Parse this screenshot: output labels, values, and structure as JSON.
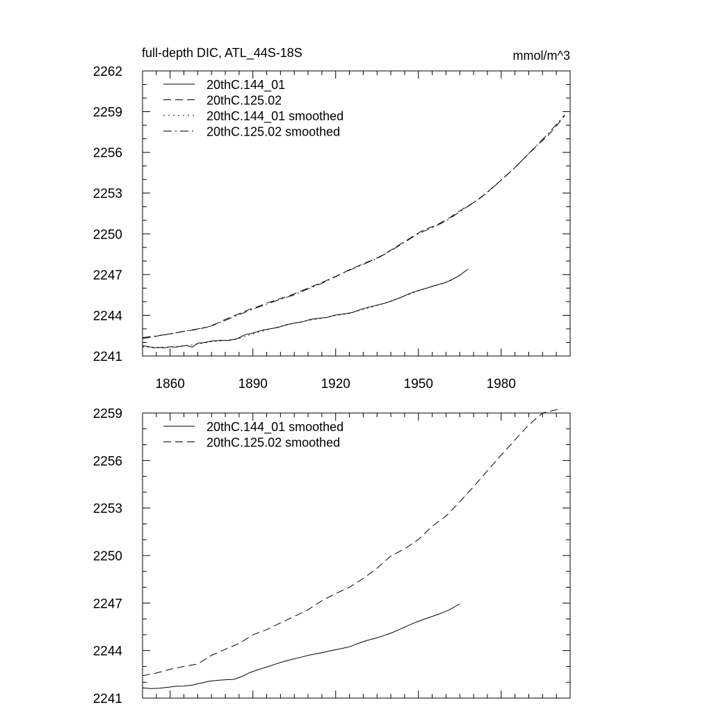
{
  "figure": {
    "title_left": "full-depth DIC, ATL_44S-18S",
    "title_right": "mmol/m^3"
  },
  "chart_data": [
    {
      "type": "line",
      "title": "full-depth DIC, ATL_44S-18S",
      "units": "mmol/m^3",
      "xlim": [
        1850,
        2005
      ],
      "ylim": [
        2241,
        2262
      ],
      "xticks": [
        1860,
        1890,
        1920,
        1950,
        1980
      ],
      "yticks": [
        2241,
        2244,
        2247,
        2250,
        2253,
        2256,
        2259,
        2262
      ],
      "x_tick_labels_visible": true,
      "grid": false,
      "legend_position": "top-left",
      "series": [
        {
          "name": "20thC.144_01",
          "dash": "solid",
          "x": [
            1850,
            1852,
            1854,
            1856,
            1858,
            1860,
            1862,
            1864,
            1866,
            1868,
            1870,
            1872,
            1875,
            1878,
            1881,
            1884,
            1887,
            1890,
            1893,
            1896,
            1899,
            1902,
            1905,
            1908,
            1911,
            1914,
            1917,
            1920,
            1923,
            1926,
            1929,
            1932,
            1935,
            1938,
            1941,
            1944,
            1947,
            1950,
            1953,
            1956,
            1959,
            1962,
            1965,
            1968
          ],
          "y": [
            2241.75,
            2241.7,
            2241.6,
            2241.63,
            2241.6,
            2241.68,
            2241.65,
            2241.72,
            2241.78,
            2241.65,
            2241.95,
            2241.98,
            2242.1,
            2242.15,
            2242.14,
            2242.25,
            2242.55,
            2242.7,
            2242.88,
            2243.0,
            2243.1,
            2243.3,
            2243.42,
            2243.52,
            2243.7,
            2243.78,
            2243.85,
            2244.02,
            2244.1,
            2244.2,
            2244.42,
            2244.6,
            2244.75,
            2244.9,
            2245.12,
            2245.35,
            2245.62,
            2245.82,
            2246.0,
            2246.2,
            2246.35,
            2246.6,
            2246.95,
            2247.4
          ]
        },
        {
          "name": "20thC.125.02",
          "dash": "dash",
          "x": [
            1850,
            1853,
            1856,
            1859,
            1862,
            1865,
            1868,
            1871,
            1874,
            1877,
            1880,
            1883,
            1886,
            1889,
            1892,
            1895,
            1898,
            1901,
            1904,
            1907,
            1910,
            1913,
            1916,
            1919,
            1922,
            1925,
            1928,
            1931,
            1934,
            1937,
            1940,
            1943,
            1946,
            1949,
            1952,
            1955,
            1958,
            1961,
            1964,
            1967,
            1970,
            1973,
            1976,
            1979,
            1982,
            1985,
            1988,
            1991,
            1994,
            1997,
            2000,
            2003
          ],
          "y": [
            2242.3,
            2242.38,
            2242.5,
            2242.6,
            2242.7,
            2242.82,
            2242.9,
            2243.02,
            2243.15,
            2243.4,
            2243.7,
            2243.95,
            2244.2,
            2244.45,
            2244.65,
            2244.9,
            2245.1,
            2245.3,
            2245.5,
            2245.75,
            2246.0,
            2246.25,
            2246.5,
            2246.78,
            2247.05,
            2247.35,
            2247.62,
            2247.88,
            2248.12,
            2248.42,
            2248.8,
            2249.18,
            2249.55,
            2249.95,
            2250.3,
            2250.52,
            2250.8,
            2251.15,
            2251.55,
            2251.95,
            2252.3,
            2252.72,
            2253.25,
            2253.78,
            2254.32,
            2254.88,
            2255.5,
            2256.1,
            2256.7,
            2257.25,
            2257.95,
            2258.7
          ]
        },
        {
          "name": "20thC.144_01 smoothed",
          "dash": "dot",
          "x": [
            1850,
            1855,
            1860,
            1865,
            1870,
            1875,
            1880,
            1885,
            1890,
            1895,
            1900,
            1905,
            1910,
            1915,
            1920,
            1925,
            1930,
            1935,
            1940,
            1945,
            1950,
            1955,
            1960,
            1965
          ],
          "y": [
            2241.68,
            2241.64,
            2241.66,
            2241.74,
            2241.88,
            2242.06,
            2242.14,
            2242.3,
            2242.64,
            2242.92,
            2243.18,
            2243.42,
            2243.62,
            2243.78,
            2243.98,
            2244.14,
            2244.44,
            2244.72,
            2245.04,
            2245.42,
            2245.8,
            2246.12,
            2246.44,
            2246.92
          ]
        },
        {
          "name": "20thC.125.02 smoothed",
          "dash": "dashdot",
          "x": [
            1850,
            1855,
            1860,
            1865,
            1870,
            1875,
            1880,
            1885,
            1890,
            1895,
            1900,
            1905,
            1910,
            1915,
            1920,
            1925,
            1930,
            1935,
            1940,
            1945,
            1950,
            1955,
            1960,
            1965,
            1970,
            1975,
            1980,
            1985,
            1990,
            1995,
            2000,
            2003
          ],
          "y": [
            2242.35,
            2242.48,
            2242.62,
            2242.82,
            2243.0,
            2243.22,
            2243.62,
            2244.05,
            2244.45,
            2244.82,
            2245.18,
            2245.5,
            2245.95,
            2246.35,
            2246.85,
            2247.32,
            2247.75,
            2248.18,
            2248.75,
            2249.38,
            2250.02,
            2250.45,
            2250.95,
            2251.62,
            2252.3,
            2253.05,
            2253.95,
            2254.88,
            2255.92,
            2256.95,
            2258.05,
            2258.75
          ]
        }
      ]
    },
    {
      "type": "line",
      "xlim": [
        1850,
        2005
      ],
      "ylim": [
        2241,
        2259
      ],
      "xticks": [
        1860,
        1890,
        1920,
        1950,
        1980
      ],
      "yticks": [
        2241,
        2244,
        2247,
        2250,
        2253,
        2256,
        2259
      ],
      "x_tick_labels_visible": false,
      "grid": false,
      "legend_position": "top-left",
      "series": [
        {
          "name": "20thC.144_01 smoothed",
          "dash": "solid",
          "x": [
            1850,
            1853,
            1856,
            1859,
            1862,
            1865,
            1868,
            1871,
            1874,
            1877,
            1880,
            1883,
            1886,
            1889,
            1892,
            1895,
            1898,
            1901,
            1904,
            1907,
            1910,
            1913,
            1916,
            1919,
            1922,
            1925,
            1928,
            1931,
            1934,
            1937,
            1940,
            1943,
            1946,
            1949,
            1952,
            1955,
            1958,
            1961,
            1965
          ],
          "y": [
            2241.65,
            2241.6,
            2241.62,
            2241.68,
            2241.74,
            2241.76,
            2241.82,
            2241.94,
            2242.06,
            2242.12,
            2242.16,
            2242.18,
            2242.36,
            2242.62,
            2242.8,
            2242.96,
            2243.14,
            2243.3,
            2243.44,
            2243.56,
            2243.7,
            2243.8,
            2243.9,
            2244.02,
            2244.12,
            2244.24,
            2244.44,
            2244.62,
            2244.76,
            2244.92,
            2245.1,
            2245.32,
            2245.56,
            2245.78,
            2245.98,
            2246.16,
            2246.34,
            2246.56,
            2246.95
          ]
        },
        {
          "name": "20thC.125.02 smoothed",
          "dash": "dash",
          "x": [
            1850,
            1855,
            1860,
            1865,
            1870,
            1875,
            1880,
            1885,
            1890,
            1895,
            1900,
            1905,
            1910,
            1915,
            1920,
            1925,
            1930,
            1935,
            1940,
            1945,
            1950,
            1955,
            1960,
            1965,
            1970,
            1975,
            1980,
            1985,
            1990,
            1995,
            2000,
            2002
          ],
          "y": [
            2242.42,
            2242.58,
            2242.82,
            2243.0,
            2243.15,
            2243.7,
            2244.08,
            2244.45,
            2245.0,
            2245.32,
            2245.75,
            2246.15,
            2246.58,
            2247.15,
            2247.6,
            2248.0,
            2248.55,
            2249.2,
            2249.98,
            2250.42,
            2251.02,
            2251.85,
            2252.5,
            2253.4,
            2254.35,
            2255.35,
            2256.35,
            2257.3,
            2258.25,
            2259.0,
            2259.2,
            2259.3
          ]
        }
      ]
    }
  ]
}
